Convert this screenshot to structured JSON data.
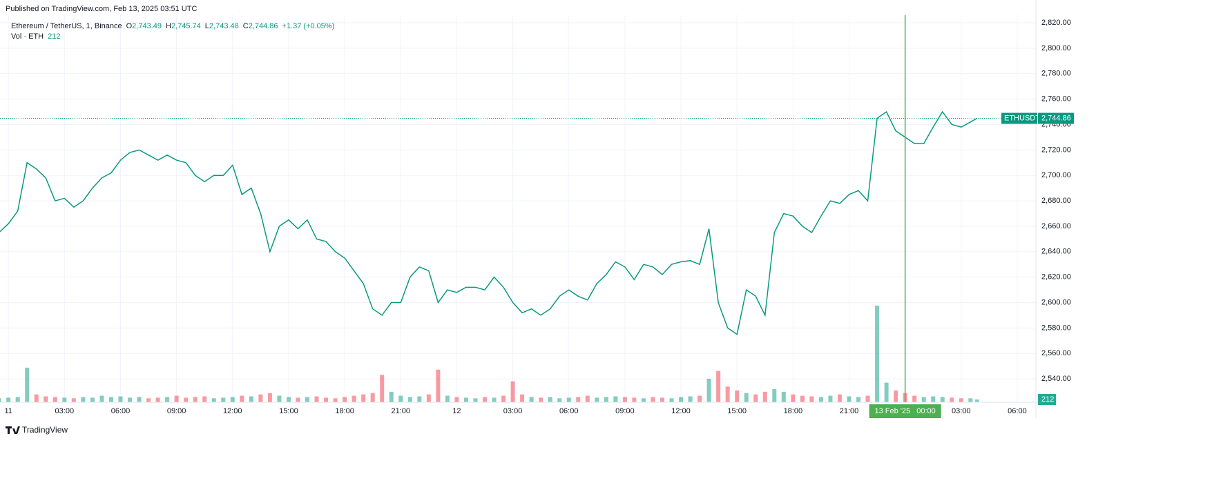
{
  "header": {
    "published": "Published on TradingView.com, Feb 13, 2025 03:51 UTC",
    "symbol": "Ethereum / TetherUS, 1, Binance",
    "o_label": "O",
    "o": "2,743.49",
    "h_label": "H",
    "h": "2,745.74",
    "l_label": "L",
    "l": "2,743.48",
    "c_label": "C",
    "c": "2,744.86",
    "change": "+1.37 (+0.05%)",
    "vol_label": "Vol · ETH",
    "vol": "212"
  },
  "footer": {
    "brand": "TradingView"
  },
  "chart_data": {
    "type": "line",
    "x": [
      -0.5,
      0,
      0.5,
      1,
      1.5,
      2,
      2.5,
      3,
      3.5,
      4,
      4.5,
      5,
      5.5,
      6,
      6.5,
      7,
      7.5,
      8,
      8.5,
      9,
      9.5,
      10,
      10.5,
      11,
      11.5,
      12,
      12.5,
      13,
      13.5,
      14,
      14.5,
      15,
      15.5,
      16,
      16.5,
      17,
      17.5,
      18,
      18.5,
      19,
      19.5,
      20,
      20.5,
      21,
      21.5,
      22,
      22.5,
      23,
      23.5,
      24,
      24.5,
      25,
      25.5,
      26,
      26.5,
      27,
      27.5,
      28,
      28.5,
      29,
      29.5,
      30,
      30.5,
      31,
      31.5,
      32,
      32.5,
      33,
      33.5,
      34,
      34.5,
      35,
      35.5,
      36,
      36.5,
      37,
      37.5,
      38,
      38.5,
      39,
      39.5,
      40,
      40.5,
      41,
      41.5,
      42,
      42.5,
      43,
      43.5,
      44,
      44.5,
      45,
      45.5,
      46,
      46.5,
      47,
      47.5,
      48,
      48.5,
      49,
      49.5,
      50,
      50.5,
      51,
      51.5,
      51.85
    ],
    "series": [
      {
        "name": "ETHUSDT",
        "color": "#089981",
        "values": [
          2655,
          2662,
          2672,
          2710,
          2705,
          2698,
          2680,
          2682,
          2675,
          2680,
          2690,
          2698,
          2702,
          2712,
          2718,
          2720,
          2716,
          2712,
          2716,
          2712,
          2710,
          2700,
          2695,
          2700,
          2700,
          2708,
          2685,
          2690,
          2670,
          2640,
          2660,
          2665,
          2658,
          2665,
          2650,
          2648,
          2640,
          2635,
          2625,
          2615,
          2595,
          2590,
          2600,
          2600,
          2620,
          2628,
          2625,
          2600,
          2610,
          2608,
          2612,
          2612,
          2610,
          2620,
          2612,
          2600,
          2592,
          2595,
          2590,
          2595,
          2605,
          2610,
          2605,
          2602,
          2615,
          2622,
          2632,
          2628,
          2618,
          2630,
          2628,
          2622,
          2630,
          2632,
          2633,
          2630,
          2658,
          2600,
          2580,
          2575,
          2610,
          2605,
          2590,
          2655,
          2670,
          2668,
          2660,
          2655,
          2668,
          2680,
          2678,
          2685,
          2688,
          2680,
          2745,
          2750,
          2735,
          2730,
          2725,
          2725,
          2738,
          2750,
          2740,
          2738,
          2742,
          2744.86
        ]
      },
      {
        "name": "Vol · ETH",
        "color": "#089981",
        "volumes": [
          300,
          350,
          400,
          2650,
          600,
          450,
          400,
          350,
          300,
          400,
          350,
          500,
          400,
          450,
          350,
          400,
          300,
          350,
          400,
          500,
          350,
          400,
          450,
          300,
          350,
          400,
          500,
          450,
          600,
          700,
          500,
          400,
          350,
          400,
          450,
          350,
          300,
          400,
          500,
          600,
          700,
          2100,
          800,
          500,
          400,
          450,
          600,
          2500,
          500,
          400,
          350,
          300,
          400,
          350,
          500,
          1600,
          600,
          400,
          350,
          400,
          300,
          350,
          400,
          500,
          350,
          400,
          450,
          400,
          350,
          300,
          400,
          350,
          300,
          400,
          450,
          500,
          1800,
          2400,
          1200,
          900,
          700,
          600,
          800,
          1000,
          800,
          600,
          500,
          450,
          400,
          500,
          600,
          450,
          400,
          500,
          7400,
          1500,
          900,
          700,
          500,
          400,
          450,
          400,
          350,
          300,
          300,
          212
        ]
      }
    ],
    "xlim": [
      -0.45,
      55
    ],
    "xticks": [
      {
        "value": 0,
        "label": "11"
      },
      {
        "value": 3,
        "label": "03:00"
      },
      {
        "value": 6,
        "label": "06:00"
      },
      {
        "value": 9,
        "label": "09:00"
      },
      {
        "value": 12,
        "label": "12:00"
      },
      {
        "value": 15,
        "label": "15:00"
      },
      {
        "value": 18,
        "label": "18:00"
      },
      {
        "value": 21,
        "label": "21:00"
      },
      {
        "value": 24,
        "label": "12"
      },
      {
        "value": 27,
        "label": "03:00"
      },
      {
        "value": 30,
        "label": "06:00"
      },
      {
        "value": 33,
        "label": "09:00"
      },
      {
        "value": 36,
        "label": "12:00"
      },
      {
        "value": 39,
        "label": "15:00"
      },
      {
        "value": 42,
        "label": "18:00"
      },
      {
        "value": 45,
        "label": "21:00"
      },
      {
        "value": 51,
        "label": "03:00"
      },
      {
        "value": 54,
        "label": "06:00"
      }
    ],
    "ylim": [
      2521.6,
      2826
    ],
    "yticks": [
      {
        "value": 2540,
        "label": "2,540.00"
      },
      {
        "value": 2560,
        "label": "2,560.00"
      },
      {
        "value": 2580,
        "label": "2,580.00"
      },
      {
        "value": 2600,
        "label": "2,600.00"
      },
      {
        "value": 2620,
        "label": "2,620.00"
      },
      {
        "value": 2640,
        "label": "2,640.00"
      },
      {
        "value": 2660,
        "label": "2,660.00"
      },
      {
        "value": 2680,
        "label": "2,680.00"
      },
      {
        "value": 2700,
        "label": "2,700.00"
      },
      {
        "value": 2720,
        "label": "2,720.00"
      },
      {
        "value": 2740,
        "label": "2,740.00"
      },
      {
        "value": 2760,
        "label": "2,760.00"
      },
      {
        "value": 2780,
        "label": "2,780.00"
      },
      {
        "value": 2800,
        "label": "2,800.00"
      },
      {
        "value": 2820,
        "label": "2,820.00"
      }
    ],
    "grid": true,
    "last_price": {
      "name": "ETHUSDT",
      "value": 2744.86,
      "label": "2,744.86",
      "color": "#089981"
    },
    "last_volume": {
      "value": 212,
      "label": "212"
    },
    "crosshair": {
      "x": 48,
      "label": "13 Feb '25   00:00",
      "color": "#4caf50"
    }
  }
}
